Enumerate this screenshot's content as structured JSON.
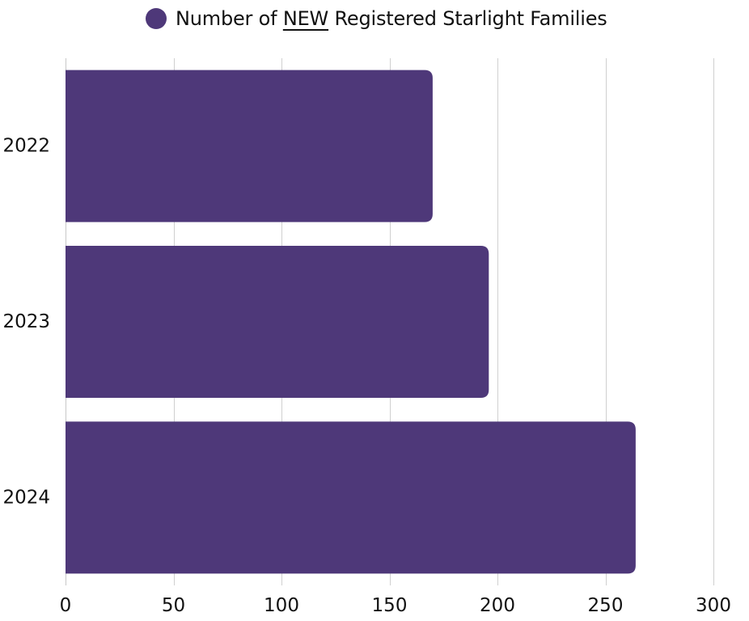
{
  "legend": {
    "before": "Number of ",
    "emph": "NEW",
    "after": " Registered Starlight Families"
  },
  "colors": {
    "bar": "#4e3879",
    "grid": "#d0d0d0",
    "axis": "#c8c8c8",
    "text": "#111111"
  },
  "chart_data": {
    "type": "bar",
    "orientation": "horizontal",
    "categories": [
      "2022",
      "2023",
      "2024"
    ],
    "series": [
      {
        "name": "Number of NEW Registered Starlight Families",
        "values": [
          170,
          196,
          264
        ]
      }
    ],
    "xlim": [
      0,
      300
    ],
    "xticks": [
      "0",
      "50",
      "100",
      "150",
      "200",
      "250",
      "300"
    ],
    "xlabel": "",
    "ylabel": "",
    "grid": true,
    "legend_position": "top-center"
  }
}
